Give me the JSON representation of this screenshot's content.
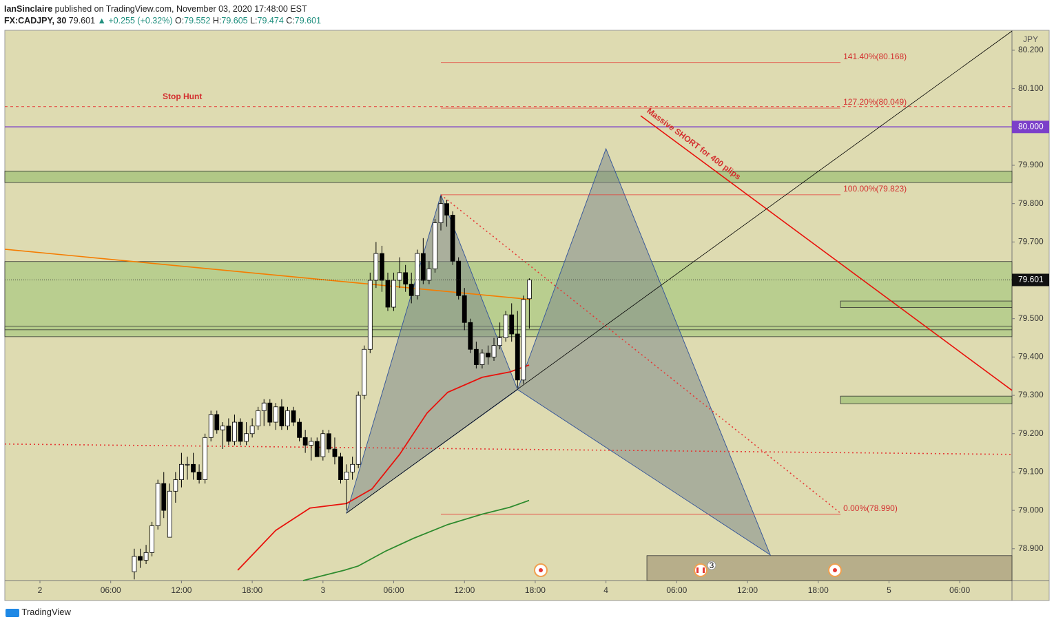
{
  "header": {
    "author": "IanSinclaire",
    "published": "published on TradingView.com, November 03, 2020 17:48:00 EST",
    "symbol": "FX:CADJPY, 30",
    "change": "▲ +0.255 (+0.32%)",
    "o": "O:",
    "h": "H:",
    "l": "L:",
    "c": "C:"
  },
  "footer": {
    "brand": "TradingView"
  },
  "chart_data": {
    "type": "candlestick",
    "currency": "JPY",
    "xlim": [
      -2.98,
      82.43
    ],
    "ylim": [
      78.817,
      80.252
    ],
    "xticks": [
      {
        "value": 0,
        "label": "2"
      },
      {
        "value": 6,
        "label": "06:00"
      },
      {
        "value": 12,
        "label": "12:00"
      },
      {
        "value": 18,
        "label": "18:00"
      },
      {
        "value": 24,
        "label": "3"
      },
      {
        "value": 30,
        "label": "06:00"
      },
      {
        "value": 36,
        "label": "12:00"
      },
      {
        "value": 42,
        "label": "18:00"
      },
      {
        "value": 48,
        "label": "4"
      },
      {
        "value": 54,
        "label": "06:00"
      },
      {
        "value": 60,
        "label": "12:00"
      },
      {
        "value": 66,
        "label": "18:00"
      },
      {
        "value": 72,
        "label": "5"
      },
      {
        "value": 78,
        "label": "06:00"
      }
    ],
    "yticks": [
      {
        "value": 80.2,
        "label": "80.200"
      },
      {
        "value": 80.1,
        "label": "80.100"
      },
      {
        "value": 79.9,
        "label": "79.900"
      },
      {
        "value": 79.8,
        "label": "79.800"
      },
      {
        "value": 79.7,
        "label": "79.700"
      },
      {
        "value": 79.5,
        "label": "79.500"
      },
      {
        "value": 79.4,
        "label": "79.400"
      },
      {
        "value": 79.3,
        "label": "79.300"
      },
      {
        "value": 79.2,
        "label": "79.200"
      },
      {
        "value": 79.1,
        "label": "79.100"
      },
      {
        "value": 79.0,
        "label": "79.000"
      },
      {
        "value": 78.9,
        "label": "78.900"
      }
    ],
    "x": [
      8,
      8.5,
      9,
      9.5,
      10,
      10.5,
      11,
      11.5,
      12,
      12.5,
      13,
      13.5,
      14,
      14.5,
      15,
      15.5,
      16,
      16.5,
      17,
      17.5,
      18,
      18.5,
      19,
      19.5,
      20,
      20.5,
      21,
      21.5,
      22,
      22.5,
      23,
      23.5,
      24,
      24.5,
      25,
      25.5,
      26,
      26.5,
      27,
      27.5,
      28,
      28.5,
      29,
      29.5,
      30,
      30.5,
      31,
      31.5,
      32,
      32.5,
      33,
      33.5,
      34,
      34.5,
      35,
      35.5,
      36,
      36.5,
      37,
      37.5,
      38,
      38.5,
      39,
      39.5,
      40,
      40.5,
      41,
      41.5
    ],
    "open": [
      78.84,
      78.88,
      78.87,
      78.89,
      78.96,
      79.07,
      78.93,
      79.05,
      79.08,
      79.12,
      79.12,
      79.1,
      79.08,
      79.19,
      79.25,
      79.21,
      79.22,
      79.18,
      79.23,
      79.18,
      79.2,
      79.22,
      79.26,
      79.28,
      79.23,
      79.27,
      79.22,
      79.26,
      79.23,
      79.19,
      79.17,
      79.18,
      79.14,
      79.2,
      79.16,
      79.14,
      79.08,
      79.1,
      79.12,
      79.3,
      79.42,
      79.6,
      79.67,
      79.6,
      79.53,
      79.6,
      79.62,
      79.59,
      79.56,
      79.67,
      79.6,
      79.63,
      79.75,
      79.8,
      79.77,
      79.65,
      79.56,
      79.49,
      79.42,
      79.38,
      79.41,
      79.4,
      79.43,
      79.45,
      79.51,
      79.46,
      79.34,
      79.552
    ],
    "high": [
      78.9,
      78.9,
      78.91,
      78.97,
      79.08,
      79.1,
      79.07,
      79.1,
      79.15,
      79.14,
      79.15,
      79.12,
      79.2,
      79.26,
      79.26,
      79.23,
      79.24,
      79.25,
      79.24,
      79.23,
      79.24,
      79.27,
      79.29,
      79.29,
      79.28,
      79.29,
      79.27,
      79.27,
      79.24,
      79.21,
      79.19,
      79.19,
      79.21,
      79.21,
      79.19,
      79.15,
      79.12,
      79.14,
      79.31,
      79.43,
      79.62,
      79.7,
      79.69,
      79.62,
      79.62,
      79.66,
      79.64,
      79.62,
      79.68,
      79.71,
      79.65,
      79.76,
      79.82,
      79.81,
      79.78,
      79.66,
      79.58,
      79.5,
      79.44,
      79.42,
      79.43,
      79.45,
      79.49,
      79.52,
      79.54,
      79.52,
      79.56,
      79.605
    ],
    "low": [
      78.82,
      78.85,
      78.86,
      78.88,
      78.95,
      78.98,
      78.93,
      79.02,
      79.06,
      79.08,
      79.08,
      79.07,
      79.07,
      79.18,
      79.2,
      79.16,
      79.17,
      79.17,
      79.17,
      79.17,
      79.19,
      79.21,
      79.22,
      79.22,
      79.21,
      79.21,
      79.21,
      79.22,
      79.18,
      79.15,
      79.13,
      79.14,
      79.13,
      79.15,
      79.12,
      79.07,
      79.0,
      79.08,
      79.11,
      79.29,
      79.41,
      79.58,
      79.57,
      79.52,
      79.52,
      79.58,
      79.57,
      79.54,
      79.55,
      79.59,
      79.59,
      79.62,
      79.73,
      79.74,
      79.64,
      79.55,
      79.47,
      79.41,
      79.37,
      79.37,
      79.38,
      79.39,
      79.42,
      79.44,
      79.44,
      79.32,
      79.33,
      79.474
    ],
    "close": [
      78.88,
      78.87,
      78.89,
      78.96,
      79.07,
      79.0,
      79.05,
      79.08,
      79.12,
      79.12,
      79.1,
      79.08,
      79.19,
      79.25,
      79.21,
      79.22,
      79.18,
      79.23,
      79.18,
      79.2,
      79.22,
      79.26,
      79.28,
      79.23,
      79.27,
      79.22,
      79.26,
      79.23,
      79.19,
      79.17,
      79.18,
      79.14,
      79.2,
      79.16,
      79.14,
      79.08,
      79.1,
      79.12,
      79.3,
      79.42,
      79.6,
      79.67,
      79.6,
      79.53,
      79.6,
      79.62,
      79.59,
      79.56,
      79.67,
      79.6,
      79.63,
      79.75,
      79.8,
      79.77,
      79.65,
      79.56,
      79.49,
      79.42,
      79.38,
      79.41,
      79.4,
      79.43,
      79.45,
      79.51,
      79.46,
      79.34,
      79.55,
      79.601
    ],
    "lines": [
      {
        "color": "#e8120c",
        "x": [
          16.77,
          20.0,
          22.9,
          26.0,
          28.16,
          30.5,
          32.83,
          34.58,
          37.5,
          39.84,
          41.48
        ],
        "values": [
          78.844,
          78.948,
          79.006,
          79.018,
          79.056,
          79.146,
          79.254,
          79.308,
          79.347,
          79.361,
          79.379
        ]
      },
      {
        "color": "#2e8b2e",
        "x": [
          22.32,
          25.82,
          27.0,
          29.33,
          31.67,
          34.58,
          37.5,
          39.84,
          41.48
        ],
        "values": [
          78.817,
          78.844,
          78.855,
          78.894,
          78.927,
          78.963,
          78.99,
          79.008,
          79.026
        ]
      }
    ],
    "trendlines": [
      {
        "color": "#f57c00",
        "dash": "",
        "x": [
          -2.98,
          41.6
        ],
        "values": [
          79.681,
          79.55
        ]
      },
      {
        "color": "#e53935",
        "dash": "2 4",
        "x": [
          -2.98,
          82.43
        ],
        "values": [
          79.173,
          79.146
        ]
      },
      {
        "color": "#e53935",
        "dash": "2 4",
        "x": [
          34.0,
          67.89
        ],
        "values": [
          79.823,
          78.993
        ]
      },
      {
        "color": "#e8120c",
        "dash": "",
        "x": [
          50.94,
          82.43
        ],
        "values": [
          80.029,
          79.313
        ]
      },
      {
        "color": "#000000",
        "dash": "",
        "x": [
          26.0,
          82.43
        ],
        "values": [
          78.993,
          80.25
        ]
      }
    ],
    "zones": [
      {
        "x": [
          -2.98,
          82.43
        ],
        "top": 79.885,
        "bottom": 79.855,
        "color": "#a9c47f"
      },
      {
        "x": [
          -2.98,
          82.43
        ],
        "top": 79.649,
        "bottom": 79.453,
        "color": "#b3cb8a"
      },
      {
        "x": [
          -2.98,
          82.43
        ],
        "top": 79.48,
        "bottom": 79.471,
        "color": "#b3cb8a"
      },
      {
        "x": [
          67.89,
          82.43
        ],
        "top": 79.546,
        "bottom": 79.529,
        "color": "#a9c47f"
      },
      {
        "x": [
          67.89,
          82.43
        ],
        "top": 79.298,
        "bottom": 79.278,
        "color": "#a9c47f"
      },
      {
        "x": [
          51.47,
          82.43
        ],
        "top": 78.882,
        "bottom": 78.817,
        "color": "#b0a684"
      }
    ],
    "pattern": {
      "x": [
        26.0,
        34.0,
        40.5,
        48.0,
        61.93
      ],
      "values": [
        78.993,
        79.823,
        79.315,
        79.943,
        78.884
      ]
    },
    "stop_hunt": {
      "value": 80.053,
      "label": "Stop Hunt"
    },
    "level": {
      "value": 80.0,
      "label": "80.000",
      "color": "#7b3fc9"
    },
    "fib": {
      "x": [
        34.0,
        67.89
      ],
      "levels": [
        {
          "value": 80.168,
          "label": "141.40%(80.168)"
        },
        {
          "value": 80.049,
          "label": "127.20%(80.049)"
        },
        {
          "value": 79.823,
          "label": "100.00%(79.823)"
        },
        {
          "value": 78.99,
          "label": "0.00%(78.990)"
        }
      ]
    },
    "short_label": "Massive SHORT for 400 plips",
    "event_badge": "3"
  }
}
